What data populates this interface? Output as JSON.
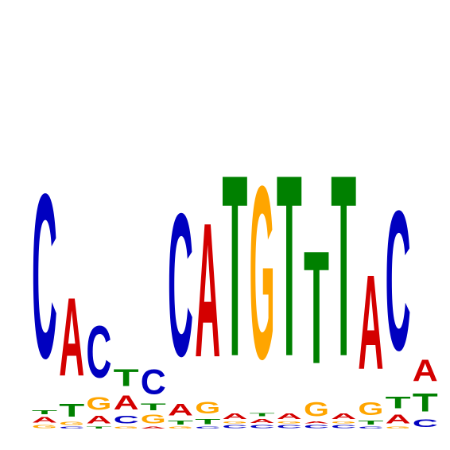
{
  "chart_data": {
    "type": "sequence-logo",
    "alphabet": [
      "A",
      "C",
      "G",
      "T"
    ],
    "colors": {
      "A": "#d40000",
      "C": "#0000c0",
      "G": "#ffa500",
      "T": "#008000"
    },
    "ylim": [
      0,
      2
    ],
    "positions": [
      [
        {
          "letter": "G",
          "value": 0.03
        },
        {
          "letter": "A",
          "value": 0.05
        },
        {
          "letter": "T",
          "value": 0.04
        },
        {
          "letter": "C",
          "value": 1.53
        }
      ],
      [
        {
          "letter": "C",
          "value": 0.02
        },
        {
          "letter": "G",
          "value": 0.03
        },
        {
          "letter": "T",
          "value": 0.12
        },
        {
          "letter": "A",
          "value": 0.73
        }
      ],
      [
        {
          "letter": "T",
          "value": 0.02
        },
        {
          "letter": "A",
          "value": 0.07
        },
        {
          "letter": "G",
          "value": 0.12
        },
        {
          "letter": "C",
          "value": 0.48
        }
      ],
      [
        {
          "letter": "G",
          "value": 0.02
        },
        {
          "letter": "C",
          "value": 0.07
        },
        {
          "letter": "A",
          "value": 0.13
        },
        {
          "letter": "T",
          "value": 0.16
        }
      ],
      [
        {
          "letter": "A",
          "value": 0.02
        },
        {
          "letter": "G",
          "value": 0.08
        },
        {
          "letter": "T",
          "value": 0.06
        },
        {
          "letter": "C",
          "value": 0.23
        }
      ],
      [
        {
          "letter": "G",
          "value": 0.02
        },
        {
          "letter": "T",
          "value": 0.04
        },
        {
          "letter": "A",
          "value": 0.11
        },
        {
          "letter": "C",
          "value": 1.33
        }
      ],
      [
        {
          "letter": "C",
          "value": 0.02
        },
        {
          "letter": "T",
          "value": 0.05
        },
        {
          "letter": "G",
          "value": 0.11
        },
        {
          "letter": "A",
          "value": 1.25
        }
      ],
      [
        {
          "letter": "C",
          "value": 0.03
        },
        {
          "letter": "G",
          "value": 0.02
        },
        {
          "letter": "A",
          "value": 0.05
        },
        {
          "letter": "T",
          "value": 1.69
        }
      ],
      [
        {
          "letter": "C",
          "value": 0.03
        },
        {
          "letter": "A",
          "value": 0.04
        },
        {
          "letter": "T",
          "value": 0.03
        },
        {
          "letter": "G",
          "value": 1.61
        }
      ],
      [
        {
          "letter": "C",
          "value": 0.03
        },
        {
          "letter": "G",
          "value": 0.02
        },
        {
          "letter": "A",
          "value": 0.05
        },
        {
          "letter": "T",
          "value": 1.69
        }
      ],
      [
        {
          "letter": "C",
          "value": 0.03
        },
        {
          "letter": "A",
          "value": 0.02
        },
        {
          "letter": "G",
          "value": 0.13
        },
        {
          "letter": "T",
          "value": 1.05
        }
      ],
      [
        {
          "letter": "C",
          "value": 0.03
        },
        {
          "letter": "G",
          "value": 0.02
        },
        {
          "letter": "A",
          "value": 0.05
        },
        {
          "letter": "T",
          "value": 1.69
        }
      ],
      [
        {
          "letter": "C",
          "value": 0.02
        },
        {
          "letter": "T",
          "value": 0.04
        },
        {
          "letter": "G",
          "value": 0.12
        },
        {
          "letter": "A",
          "value": 0.88
        }
      ],
      [
        {
          "letter": "G",
          "value": 0.02
        },
        {
          "letter": "A",
          "value": 0.08
        },
        {
          "letter": "T",
          "value": 0.11
        },
        {
          "letter": "C",
          "value": 1.3
        }
      ],
      [
        {
          "letter": "C",
          "value": 0.07
        },
        {
          "letter": "T",
          "value": 0.17
        },
        {
          "letter": "A",
          "value": 0.2
        }
      ]
    ]
  }
}
